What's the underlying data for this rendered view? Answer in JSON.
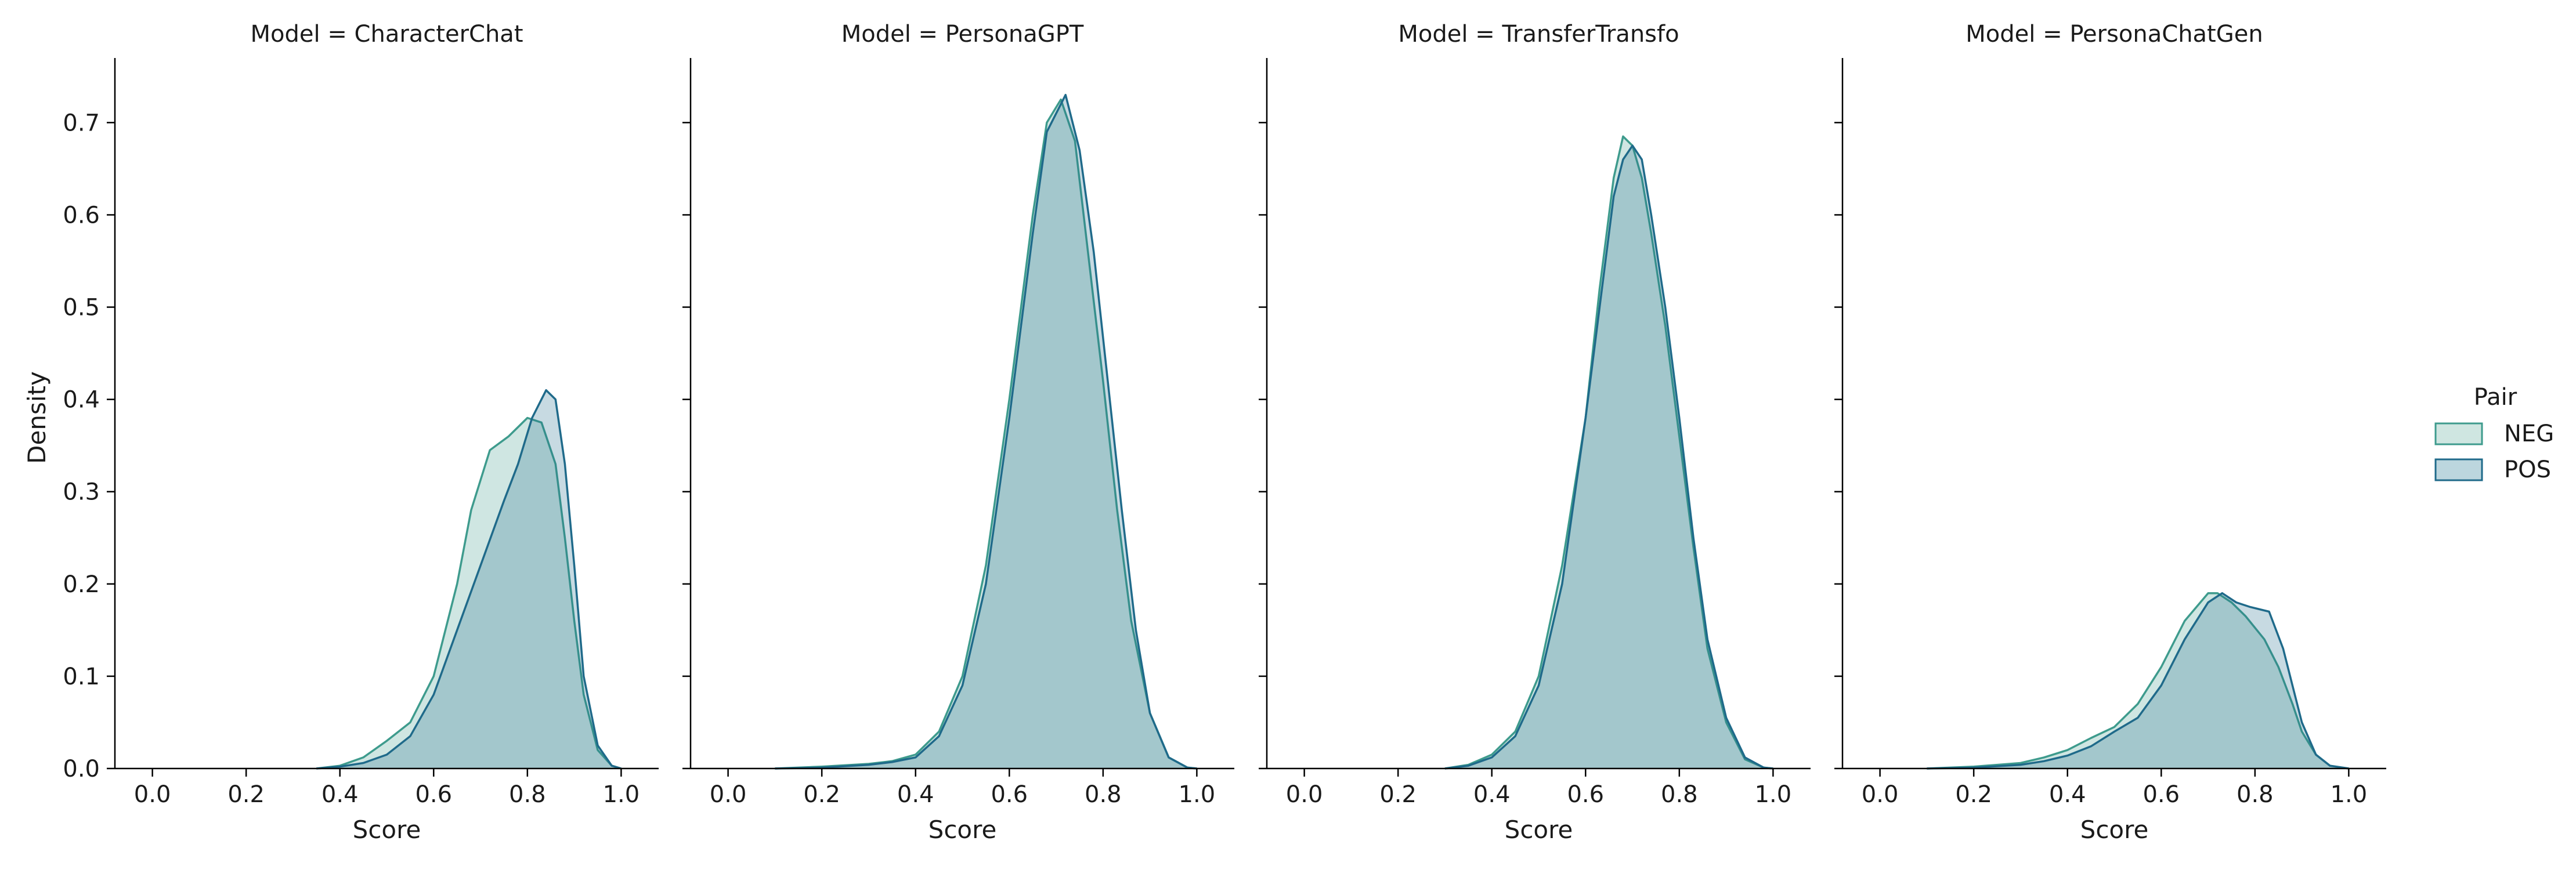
{
  "chart_data": {
    "type": "area",
    "y_label": "Density",
    "x_label": "Score",
    "xlim": [
      -0.08,
      1.08
    ],
    "ylim": [
      0,
      0.77
    ],
    "x_ticks": [
      "0.0",
      "0.2",
      "0.4",
      "0.6",
      "0.8",
      "1.0"
    ],
    "y_ticks": [
      "0.0",
      "0.1",
      "0.2",
      "0.3",
      "0.4",
      "0.5",
      "0.6",
      "0.7"
    ],
    "legend": {
      "title": "Pair",
      "position": "right",
      "entries": [
        {
          "label": "NEG",
          "fill": "#cfe6e1",
          "stroke": "#3e9b8d"
        },
        {
          "label": "POS",
          "fill": "#bcd6de",
          "stroke": "#1f6a8a"
        }
      ]
    },
    "colors": {
      "NEG": {
        "fill": "rgba(62,155,141,0.25)",
        "stroke": "#3e9b8d"
      },
      "POS": {
        "fill": "rgba(31,106,138,0.25)",
        "stroke": "#1f6a8a"
      }
    },
    "panels": [
      {
        "title": "Model = CharacterChat",
        "series": [
          {
            "name": "NEG",
            "x": [
              0.35,
              0.4,
              0.45,
              0.5,
              0.55,
              0.6,
              0.65,
              0.68,
              0.72,
              0.76,
              0.8,
              0.83,
              0.86,
              0.88,
              0.9,
              0.92,
              0.95,
              0.98,
              1.0
            ],
            "y": [
              0.0,
              0.003,
              0.012,
              0.03,
              0.05,
              0.1,
              0.2,
              0.28,
              0.345,
              0.36,
              0.38,
              0.375,
              0.33,
              0.25,
              0.16,
              0.08,
              0.02,
              0.003,
              0.0
            ]
          },
          {
            "name": "POS",
            "x": [
              0.35,
              0.4,
              0.45,
              0.5,
              0.55,
              0.6,
              0.65,
              0.7,
              0.75,
              0.78,
              0.81,
              0.84,
              0.86,
              0.88,
              0.9,
              0.92,
              0.95,
              0.98,
              1.0
            ],
            "y": [
              0.0,
              0.002,
              0.006,
              0.015,
              0.035,
              0.08,
              0.15,
              0.22,
              0.29,
              0.33,
              0.38,
              0.41,
              0.4,
              0.33,
              0.22,
              0.1,
              0.025,
              0.003,
              0.0
            ]
          }
        ]
      },
      {
        "title": "Model = PersonaGPT",
        "series": [
          {
            "name": "NEG",
            "x": [
              0.1,
              0.2,
              0.3,
              0.35,
              0.4,
              0.45,
              0.5,
              0.55,
              0.6,
              0.65,
              0.68,
              0.71,
              0.74,
              0.77,
              0.8,
              0.83,
              0.86,
              0.9,
              0.94,
              0.98,
              1.0
            ],
            "y": [
              0.0,
              0.002,
              0.005,
              0.008,
              0.015,
              0.04,
              0.1,
              0.22,
              0.4,
              0.6,
              0.7,
              0.725,
              0.68,
              0.55,
              0.42,
              0.28,
              0.16,
              0.06,
              0.012,
              0.001,
              0.0
            ]
          },
          {
            "name": "POS",
            "x": [
              0.1,
              0.2,
              0.3,
              0.35,
              0.4,
              0.45,
              0.5,
              0.55,
              0.6,
              0.65,
              0.68,
              0.72,
              0.75,
              0.78,
              0.81,
              0.84,
              0.87,
              0.9,
              0.94,
              0.98,
              1.0
            ],
            "y": [
              0.0,
              0.001,
              0.004,
              0.007,
              0.012,
              0.035,
              0.09,
              0.2,
              0.38,
              0.58,
              0.69,
              0.73,
              0.67,
              0.56,
              0.42,
              0.28,
              0.15,
              0.06,
              0.012,
              0.001,
              0.0
            ]
          }
        ]
      },
      {
        "title": "Model = TransferTransfo",
        "series": [
          {
            "name": "NEG",
            "x": [
              0.3,
              0.35,
              0.4,
              0.45,
              0.5,
              0.55,
              0.6,
              0.63,
              0.66,
              0.68,
              0.7,
              0.72,
              0.74,
              0.77,
              0.8,
              0.83,
              0.86,
              0.9,
              0.94,
              0.98,
              1.0
            ],
            "y": [
              0.0,
              0.004,
              0.015,
              0.04,
              0.1,
              0.22,
              0.38,
              0.52,
              0.64,
              0.685,
              0.675,
              0.64,
              0.58,
              0.48,
              0.36,
              0.24,
              0.13,
              0.05,
              0.01,
              0.001,
              0.0
            ]
          },
          {
            "name": "POS",
            "x": [
              0.3,
              0.35,
              0.4,
              0.45,
              0.5,
              0.55,
              0.6,
              0.63,
              0.66,
              0.68,
              0.7,
              0.72,
              0.74,
              0.77,
              0.8,
              0.83,
              0.86,
              0.9,
              0.94,
              0.98,
              1.0
            ],
            "y": [
              0.0,
              0.003,
              0.012,
              0.035,
              0.09,
              0.2,
              0.38,
              0.5,
              0.62,
              0.66,
              0.675,
              0.66,
              0.6,
              0.5,
              0.38,
              0.25,
              0.14,
              0.055,
              0.012,
              0.001,
              0.0
            ]
          }
        ]
      },
      {
        "title": "Model = PersonaChatGen",
        "series": [
          {
            "name": "NEG",
            "x": [
              0.1,
              0.2,
              0.3,
              0.35,
              0.4,
              0.45,
              0.5,
              0.55,
              0.6,
              0.65,
              0.7,
              0.72,
              0.75,
              0.78,
              0.82,
              0.85,
              0.88,
              0.9,
              0.93,
              0.96,
              1.0
            ],
            "y": [
              0.0,
              0.002,
              0.006,
              0.012,
              0.02,
              0.033,
              0.045,
              0.07,
              0.11,
              0.16,
              0.19,
              0.19,
              0.18,
              0.165,
              0.14,
              0.11,
              0.07,
              0.04,
              0.015,
              0.003,
              0.0
            ]
          },
          {
            "name": "POS",
            "x": [
              0.1,
              0.2,
              0.3,
              0.35,
              0.4,
              0.45,
              0.5,
              0.55,
              0.6,
              0.65,
              0.7,
              0.73,
              0.76,
              0.79,
              0.83,
              0.86,
              0.88,
              0.9,
              0.93,
              0.96,
              1.0
            ],
            "y": [
              0.0,
              0.001,
              0.004,
              0.008,
              0.014,
              0.024,
              0.04,
              0.055,
              0.09,
              0.14,
              0.18,
              0.19,
              0.18,
              0.175,
              0.17,
              0.13,
              0.09,
              0.05,
              0.015,
              0.003,
              0.0
            ]
          }
        ]
      }
    ]
  }
}
